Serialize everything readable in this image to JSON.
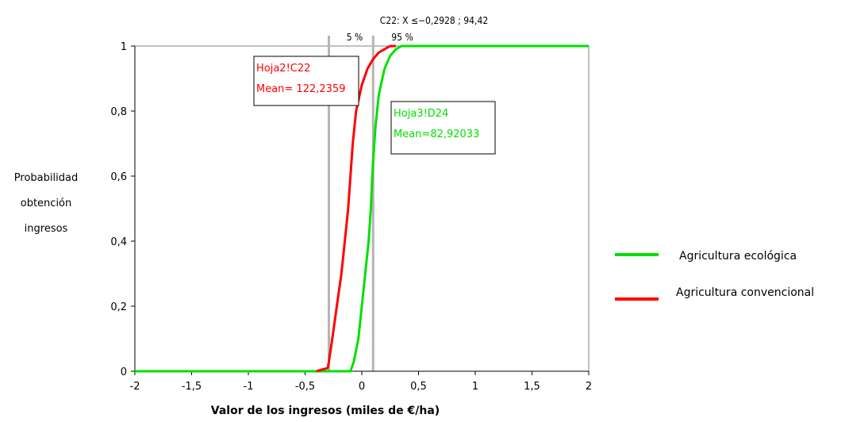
{
  "chart_data": {
    "type": "line",
    "header": "C22: X <=-0,2928 ; 94,42",
    "header_display": "C22: X ≤−0,2928 ; 94,42",
    "percentile_labels": {
      "low": "5 %",
      "high": "95 %"
    },
    "percentile_lines": [
      -0.29,
      0.1
    ],
    "xlabel": "Valor de los ingresos (miles de €/ha)",
    "ylabel": [
      "Probabilidad",
      "obtención",
      "ingresos"
    ],
    "xlim": [
      -2,
      2
    ],
    "ylim": [
      0,
      1
    ],
    "x_ticks": [
      "-2",
      "-1,5",
      "-1",
      "-0,5",
      "0",
      "0,5",
      "1",
      "1,5",
      "2"
    ],
    "x_tick_values": [
      -2,
      -1.5,
      -1,
      -0.5,
      0,
      0.5,
      1,
      1.5,
      2
    ],
    "y_ticks": [
      "0",
      "0,2",
      "0,4",
      "0,6",
      "0,8",
      "1"
    ],
    "y_tick_values": [
      0,
      0.2,
      0.4,
      0.6,
      0.8,
      1
    ],
    "grid": false,
    "legend_position": "right",
    "series": [
      {
        "name": "Agricultura ecológica",
        "color": "#00e000",
        "x": [
          -2,
          -0.1,
          -0.07,
          -0.03,
          0.0,
          0.03,
          0.06,
          0.08,
          0.09,
          0.1,
          0.12,
          0.15,
          0.2,
          0.25,
          0.3,
          0.35,
          2
        ],
        "y": [
          0,
          0,
          0.03,
          0.1,
          0.2,
          0.3,
          0.4,
          0.5,
          0.58,
          0.65,
          0.75,
          0.85,
          0.93,
          0.97,
          0.99,
          1.0,
          1.0
        ]
      },
      {
        "name": "Agricultura convencional",
        "color": "#ff0000",
        "x": [
          -0.4,
          -0.3,
          -0.29,
          -0.26,
          -0.22,
          -0.18,
          -0.15,
          -0.12,
          -0.1,
          -0.08,
          -0.05,
          0.0,
          0.05,
          0.1,
          0.15,
          0.2,
          0.25,
          0.3
        ],
        "y": [
          0,
          0.01,
          0.03,
          0.1,
          0.2,
          0.3,
          0.4,
          0.5,
          0.6,
          0.7,
          0.8,
          0.88,
          0.93,
          0.96,
          0.98,
          0.99,
          1.0,
          1.0
        ]
      }
    ],
    "annotations": [
      {
        "lines": [
          "Hoja2!C22",
          "Mean= 122,2359"
        ],
        "color": "#ff0000"
      },
      {
        "lines": [
          "Hoja3!D24",
          "Mean=82,92033"
        ],
        "color": "#00e000"
      }
    ]
  }
}
